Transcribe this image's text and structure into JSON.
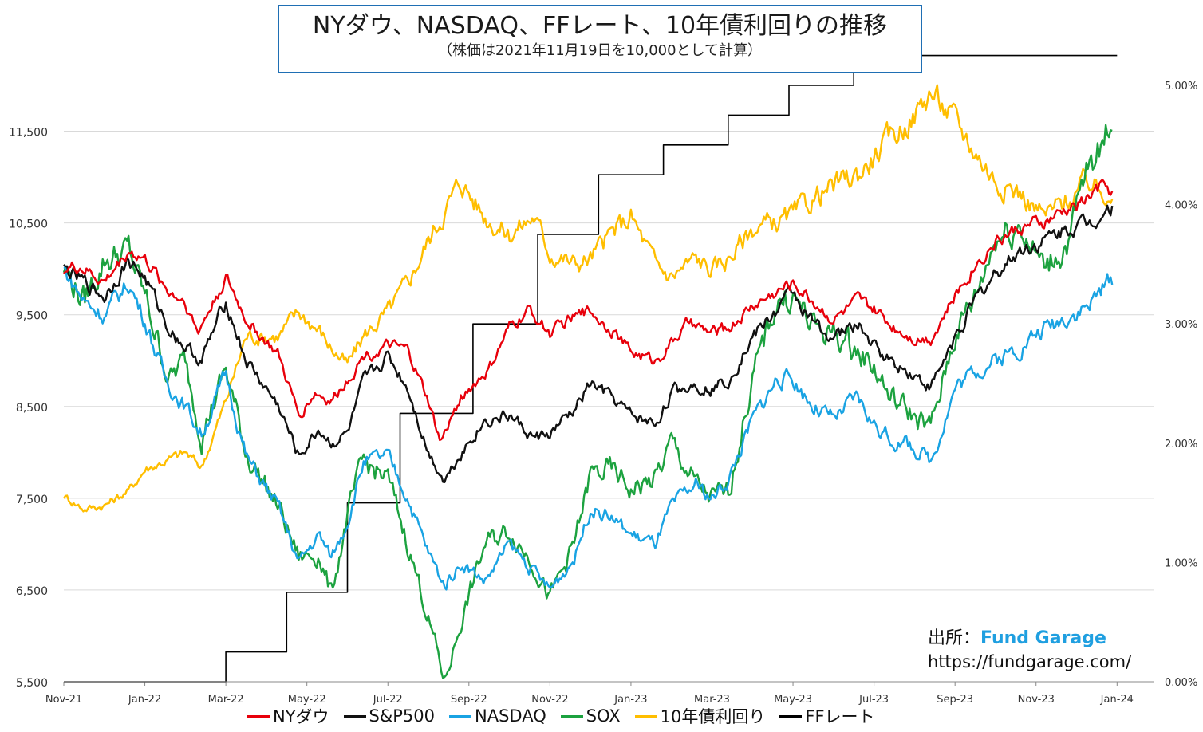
{
  "header": {
    "title": "NYダウ、NASDAQ、FFレート、10年債利回りの推移",
    "subtitle": "（株価は2021年11月19日を10,000として計算）"
  },
  "source": {
    "label": "出所：",
    "brand": "Fund Garage",
    "url": "https://fundgarage.com/"
  },
  "chart_data": {
    "type": "line",
    "x_labels": [
      "Nov-21",
      "Jan-22",
      "Mar-22",
      "May-22",
      "Jul-22",
      "Sep-22",
      "Nov-22",
      "Jan-23",
      "Mar-23",
      "May-23",
      "Jul-23",
      "Sep-23",
      "Nov-23",
      "Jan-24"
    ],
    "x_range": [
      0,
      26.9
    ],
    "y_left": {
      "range": [
        5500,
        12000
      ],
      "ticks": [
        5500,
        6500,
        7500,
        8500,
        9500,
        10500,
        11500
      ],
      "tick_labels": [
        "5,500",
        "6,500",
        "7,500",
        "8,500",
        "9,500",
        "10,500",
        "11,500"
      ]
    },
    "y_right": {
      "range": [
        0,
        5.0
      ],
      "ticks": [
        0,
        1,
        2,
        3,
        4,
        5
      ],
      "tick_labels": [
        "0.00%",
        "1.00%",
        "2.00%",
        "3.00%",
        "4.00%",
        "5.00%"
      ]
    },
    "grid": true,
    "legend_position": "bottom",
    "series": [
      {
        "name": "NYダウ",
        "axis": "left",
        "color": "#e8000b",
        "volatility": 0.006,
        "points": [
          [
            0,
            10000
          ],
          [
            0.4,
            10020
          ],
          [
            1,
            9850
          ],
          [
            1.6,
            10200
          ],
          [
            2,
            10100
          ],
          [
            2.6,
            9750
          ],
          [
            3,
            9650
          ],
          [
            3.3,
            9300
          ],
          [
            4,
            9900
          ],
          [
            4.5,
            9450
          ],
          [
            5.3,
            9050
          ],
          [
            5.8,
            8400
          ],
          [
            6.2,
            8650
          ],
          [
            6.6,
            8550
          ],
          [
            7,
            8800
          ],
          [
            7.4,
            9050
          ],
          [
            8,
            9150
          ],
          [
            8.5,
            9100
          ],
          [
            9,
            8550
          ],
          [
            9.3,
            8100
          ],
          [
            9.8,
            8600
          ],
          [
            10.5,
            8900
          ],
          [
            11,
            9350
          ],
          [
            11.5,
            9550
          ],
          [
            12,
            9300
          ],
          [
            12.5,
            9450
          ],
          [
            13,
            9550
          ],
          [
            13.5,
            9350
          ],
          [
            14,
            9100
          ],
          [
            14.6,
            9000
          ],
          [
            15,
            9200
          ],
          [
            15.4,
            9400
          ],
          [
            16,
            9300
          ],
          [
            16.4,
            9350
          ],
          [
            17,
            9600
          ],
          [
            17.6,
            9750
          ],
          [
            18,
            9850
          ],
          [
            18.5,
            9650
          ],
          [
            19,
            9450
          ],
          [
            19.6,
            9650
          ],
          [
            20,
            9550
          ],
          [
            20.4,
            9400
          ],
          [
            21,
            9250
          ],
          [
            21.4,
            9250
          ],
          [
            22,
            9700
          ],
          [
            22.5,
            10050
          ],
          [
            23,
            10300
          ],
          [
            23.6,
            10450
          ],
          [
            24.2,
            10500
          ],
          [
            24.8,
            10650
          ],
          [
            25.2,
            10750
          ],
          [
            25.6,
            10900
          ],
          [
            25.9,
            10850
          ]
        ]
      },
      {
        "name": "S&P500",
        "axis": "left",
        "color": "#111111",
        "volatility": 0.007,
        "points": [
          [
            0,
            10000
          ],
          [
            0.5,
            9850
          ],
          [
            1,
            9700
          ],
          [
            1.6,
            10100
          ],
          [
            2,
            9900
          ],
          [
            2.6,
            9350
          ],
          [
            3,
            9150
          ],
          [
            3.4,
            9000
          ],
          [
            4,
            9650
          ],
          [
            4.5,
            9000
          ],
          [
            5.3,
            8500
          ],
          [
            5.8,
            7950
          ],
          [
            6.3,
            8250
          ],
          [
            6.6,
            8100
          ],
          [
            7,
            8200
          ],
          [
            7.4,
            8750
          ],
          [
            8,
            9050
          ],
          [
            8.5,
            8700
          ],
          [
            9,
            8000
          ],
          [
            9.4,
            7700
          ],
          [
            9.8,
            8000
          ],
          [
            10.4,
            8350
          ],
          [
            11,
            8400
          ],
          [
            11.6,
            8150
          ],
          [
            12,
            8200
          ],
          [
            12.6,
            8450
          ],
          [
            13,
            8750
          ],
          [
            13.5,
            8600
          ],
          [
            14,
            8400
          ],
          [
            14.6,
            8300
          ],
          [
            15,
            8650
          ],
          [
            15.6,
            8750
          ],
          [
            16,
            8700
          ],
          [
            16.4,
            8800
          ],
          [
            17,
            9250
          ],
          [
            17.6,
            9550
          ],
          [
            18,
            9750
          ],
          [
            18.5,
            9400
          ],
          [
            19,
            9250
          ],
          [
            19.6,
            9400
          ],
          [
            20,
            9150
          ],
          [
            20.4,
            9000
          ],
          [
            21,
            8850
          ],
          [
            21.4,
            8700
          ],
          [
            22,
            9250
          ],
          [
            22.5,
            9650
          ],
          [
            23,
            9950
          ],
          [
            23.6,
            10200
          ],
          [
            24.2,
            10300
          ],
          [
            24.8,
            10450
          ],
          [
            25.3,
            10500
          ],
          [
            25.6,
            10600
          ],
          [
            25.9,
            10700
          ]
        ]
      },
      {
        "name": "NASDAQ",
        "axis": "left",
        "color": "#19a3e3",
        "volatility": 0.009,
        "points": [
          [
            0,
            10000
          ],
          [
            0.5,
            9650
          ],
          [
            1,
            9500
          ],
          [
            1.6,
            9850
          ],
          [
            2,
            9450
          ],
          [
            2.5,
            8800
          ],
          [
            3,
            8500
          ],
          [
            3.4,
            8200
          ],
          [
            4,
            8850
          ],
          [
            4.5,
            7950
          ],
          [
            5.3,
            7400
          ],
          [
            5.8,
            6800
          ],
          [
            6.3,
            7100
          ],
          [
            6.6,
            6850
          ],
          [
            7,
            7250
          ],
          [
            7.4,
            7900
          ],
          [
            8,
            7950
          ],
          [
            8.5,
            7500
          ],
          [
            9,
            6900
          ],
          [
            9.4,
            6550
          ],
          [
            9.8,
            6800
          ],
          [
            10.4,
            6600
          ],
          [
            11,
            7000
          ],
          [
            11.6,
            6700
          ],
          [
            12,
            6500
          ],
          [
            12.6,
            6850
          ],
          [
            13,
            7400
          ],
          [
            13.5,
            7300
          ],
          [
            14,
            7100
          ],
          [
            14.6,
            7000
          ],
          [
            15,
            7400
          ],
          [
            15.6,
            7650
          ],
          [
            16,
            7500
          ],
          [
            16.4,
            7700
          ],
          [
            17,
            8350
          ],
          [
            17.6,
            8800
          ],
          [
            18,
            8800
          ],
          [
            18.5,
            8500
          ],
          [
            19,
            8350
          ],
          [
            19.6,
            8600
          ],
          [
            20,
            8300
          ],
          [
            20.4,
            8150
          ],
          [
            21,
            8050
          ],
          [
            21.4,
            7900
          ],
          [
            22,
            8700
          ],
          [
            22.5,
            8900
          ],
          [
            23,
            9000
          ],
          [
            23.6,
            9150
          ],
          [
            24.2,
            9350
          ],
          [
            24.8,
            9500
          ],
          [
            25.3,
            9600
          ],
          [
            25.6,
            9750
          ],
          [
            25.9,
            9900
          ]
        ]
      },
      {
        "name": "SOX",
        "axis": "left",
        "color": "#1ca23f",
        "volatility": 0.014,
        "points": [
          [
            0,
            10000
          ],
          [
            0.5,
            9650
          ],
          [
            1,
            10100
          ],
          [
            1.6,
            10200
          ],
          [
            2,
            9700
          ],
          [
            2.6,
            8800
          ],
          [
            3,
            9000
          ],
          [
            3.4,
            8200
          ],
          [
            4,
            8900
          ],
          [
            4.5,
            8000
          ],
          [
            5.3,
            7400
          ],
          [
            5.8,
            6850
          ],
          [
            6.3,
            6900
          ],
          [
            6.6,
            6450
          ],
          [
            7,
            7300
          ],
          [
            7.4,
            7900
          ],
          [
            8,
            7700
          ],
          [
            8.5,
            7000
          ],
          [
            9,
            6200
          ],
          [
            9.4,
            5500
          ],
          [
            9.8,
            6150
          ],
          [
            10.4,
            7000
          ],
          [
            11,
            7150
          ],
          [
            11.6,
            6800
          ],
          [
            12,
            6400
          ],
          [
            12.6,
            7000
          ],
          [
            13,
            7750
          ],
          [
            13.5,
            7800
          ],
          [
            14,
            7600
          ],
          [
            14.6,
            7700
          ],
          [
            15,
            8100
          ],
          [
            15.6,
            7650
          ],
          [
            16,
            7500
          ],
          [
            16.4,
            7550
          ],
          [
            17,
            8800
          ],
          [
            17.6,
            9650
          ],
          [
            18,
            9700
          ],
          [
            18.5,
            9350
          ],
          [
            19,
            9300
          ],
          [
            19.6,
            9100
          ],
          [
            20,
            8950
          ],
          [
            20.4,
            8600
          ],
          [
            21,
            8400
          ],
          [
            21.4,
            8250
          ],
          [
            22,
            9300
          ],
          [
            22.5,
            9700
          ],
          [
            23,
            10350
          ],
          [
            23.6,
            10500
          ],
          [
            24.2,
            10000
          ],
          [
            24.8,
            10300
          ],
          [
            25.3,
            11100
          ],
          [
            25.6,
            11300
          ],
          [
            25.9,
            11700
          ]
        ]
      },
      {
        "name": "10年債利回り",
        "axis": "right",
        "color": "#ffbe00",
        "volatility": 0.02,
        "points": [
          [
            0,
            1.56
          ],
          [
            0.5,
            1.45
          ],
          [
            1,
            1.48
          ],
          [
            1.6,
            1.6
          ],
          [
            2,
            1.78
          ],
          [
            2.5,
            1.85
          ],
          [
            3,
            1.92
          ],
          [
            3.4,
            1.8
          ],
          [
            4,
            2.35
          ],
          [
            4.5,
            2.9
          ],
          [
            5.3,
            2.9
          ],
          [
            5.8,
            3.1
          ],
          [
            6.3,
            2.95
          ],
          [
            6.6,
            2.8
          ],
          [
            7,
            2.65
          ],
          [
            7.4,
            2.9
          ],
          [
            8,
            3.1
          ],
          [
            8.5,
            3.35
          ],
          [
            9,
            3.7
          ],
          [
            9.4,
            3.95
          ],
          [
            9.8,
            4.2
          ],
          [
            10.4,
            3.9
          ],
          [
            11,
            3.75
          ],
          [
            11.6,
            3.9
          ],
          [
            12,
            3.6
          ],
          [
            12.6,
            3.5
          ],
          [
            13,
            3.55
          ],
          [
            13.5,
            3.75
          ],
          [
            14,
            3.9
          ],
          [
            14.6,
            3.5
          ],
          [
            15,
            3.4
          ],
          [
            15.6,
            3.55
          ],
          [
            16,
            3.45
          ],
          [
            16.4,
            3.55
          ],
          [
            17,
            3.8
          ],
          [
            17.6,
            3.85
          ],
          [
            18,
            3.9
          ],
          [
            18.5,
            4.05
          ],
          [
            19,
            4.15
          ],
          [
            19.6,
            4.25
          ],
          [
            20,
            4.4
          ],
          [
            20.4,
            4.55
          ],
          [
            21,
            4.75
          ],
          [
            21.4,
            4.95
          ],
          [
            22,
            4.7
          ],
          [
            22.5,
            4.45
          ],
          [
            23,
            4.2
          ],
          [
            23.6,
            4.1
          ],
          [
            24.2,
            3.9
          ],
          [
            24.8,
            4.05
          ],
          [
            25.3,
            4.2
          ],
          [
            25.6,
            4.1
          ],
          [
            25.9,
            4.15
          ]
        ]
      },
      {
        "name": "FFレート",
        "axis": "right",
        "color": "#000000",
        "step": true,
        "points": [
          [
            0,
            0.0
          ],
          [
            4.0,
            0.0
          ],
          [
            4.0,
            0.25
          ],
          [
            5.5,
            0.25
          ],
          [
            5.5,
            0.75
          ],
          [
            7.0,
            0.75
          ],
          [
            7.0,
            1.5
          ],
          [
            8.3,
            1.5
          ],
          [
            8.3,
            2.25
          ],
          [
            10.1,
            2.25
          ],
          [
            10.1,
            3.0
          ],
          [
            11.7,
            3.0
          ],
          [
            11.7,
            3.75
          ],
          [
            13.2,
            3.75
          ],
          [
            13.2,
            4.25
          ],
          [
            14.8,
            4.25
          ],
          [
            14.8,
            4.5
          ],
          [
            16.4,
            4.5
          ],
          [
            16.4,
            4.75
          ],
          [
            17.9,
            4.75
          ],
          [
            17.9,
            5.0
          ],
          [
            19.5,
            5.0
          ],
          [
            19.5,
            5.25
          ],
          [
            26.0,
            5.25
          ]
        ]
      }
    ]
  }
}
